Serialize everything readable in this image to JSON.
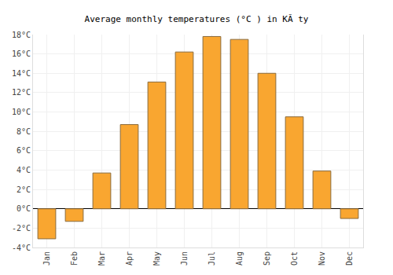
{
  "chart_data": {
    "type": "bar",
    "title": "Average monthly temperatures (°C ) in KĂ ty",
    "categories": [
      "Jan",
      "Feb",
      "Mar",
      "Apr",
      "May",
      "Jun",
      "Jul",
      "Aug",
      "Sep",
      "Oct",
      "Nov",
      "Dec"
    ],
    "values": [
      -3.1,
      -1.3,
      3.7,
      8.7,
      13.1,
      16.2,
      17.8,
      17.5,
      14.0,
      9.5,
      3.9,
      -1.0
    ],
    "color": "#f9a630",
    "ylim": [
      -4,
      18
    ],
    "yticks": [
      {
        "value": -4,
        "label": "-4°C"
      },
      {
        "value": -2,
        "label": "-2°C"
      },
      {
        "value": 0,
        "label": "0°C"
      },
      {
        "value": 2,
        "label": "2°C"
      },
      {
        "value": 4,
        "label": "4°C"
      },
      {
        "value": 6,
        "label": "6°C"
      },
      {
        "value": 8,
        "label": "8°C"
      },
      {
        "value": 10,
        "label": "10°C"
      },
      {
        "value": 12,
        "label": "12°C"
      },
      {
        "value": 14,
        "label": "14°C"
      },
      {
        "value": 16,
        "label": "16°C"
      },
      {
        "value": 18,
        "label": "18°C"
      }
    ],
    "grid": true
  }
}
